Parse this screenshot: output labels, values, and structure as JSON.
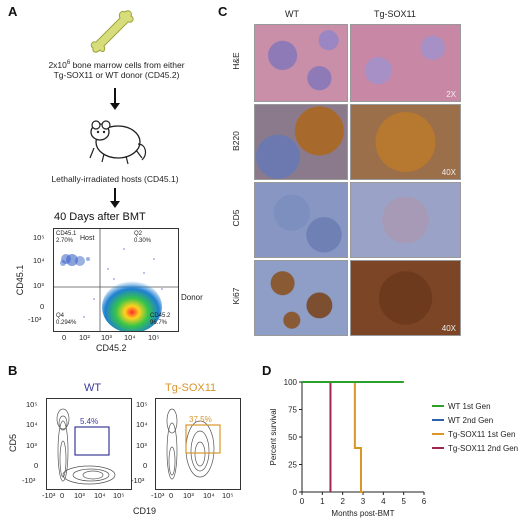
{
  "panels": {
    "A": "A",
    "B": "B",
    "C": "C",
    "D": "D"
  },
  "panel_a": {
    "donor_line1": "2x10",
    "donor_exp": "6",
    "donor_line1_rest": " bone marrow cells from either",
    "donor_line2": "Tg-SOX11 or WT donor (CD45.2)",
    "host_text": "Lethally-irradiated hosts (CD45.1)",
    "timepoint": "40 Days after BMT",
    "flow": {
      "ylabel": "CD45.1",
      "xlabel": "CD45.2",
      "q1_name": "CD45.1",
      "q1_value": "2.70%",
      "q2_name": "Q2",
      "q2_value": "0.30%",
      "q4_name": "Q4",
      "q4_value": "0.294%",
      "q3_name": "CD45.2",
      "q3_value": "96.7%",
      "host_label": "Host",
      "donor_label": "Donor",
      "yticks": [
        "10⁵",
        "10⁴",
        "10³",
        "0",
        "-10³"
      ],
      "xticks": [
        "0",
        "10²",
        "10³",
        "10⁴",
        "10⁵"
      ]
    }
  },
  "panel_b": {
    "wt_title": "WT",
    "tg_title": "Tg-SOX11",
    "wt_gate": "5.4%",
    "tg_gate": "37.5%",
    "ylabel": "CD5",
    "xlabel": "CD19",
    "yticks": [
      "10⁵",
      "10⁴",
      "10³",
      "0",
      "-10³"
    ],
    "xticks": [
      "-10³",
      "0",
      "10³",
      "10⁴",
      "10⁵"
    ],
    "colors": {
      "wt": "#3b3b9a",
      "tg": "#d8952a"
    }
  },
  "panel_c": {
    "col_wt": "WT",
    "col_tg": "Tg-SOX11",
    "rows": [
      "H&E",
      "B220",
      "CD5",
      "Ki67"
    ],
    "mag_2x": "2X",
    "mag_40x": "40X"
  },
  "panel_d": {
    "ylabel": "Percent survival",
    "xlabel": "Months post-BMT"
  },
  "chart_data": {
    "type": "line",
    "title": "",
    "xlabel": "Months post-BMT",
    "ylabel": "Percent survival",
    "xlim": [
      0,
      6
    ],
    "ylim": [
      0,
      100
    ],
    "xticks": [
      0,
      1,
      2,
      3,
      4,
      5,
      6
    ],
    "yticks": [
      0,
      25,
      50,
      75,
      100
    ],
    "legend_position": "right",
    "series": [
      {
        "name": "WT 1st Gen",
        "color": "#2ca02c",
        "x": [
          0,
          5
        ],
        "y": [
          100,
          100
        ]
      },
      {
        "name": "WT 2nd Gen",
        "color": "#2f5fa8",
        "x": [
          0,
          5
        ],
        "y": [
          100,
          100
        ]
      },
      {
        "name": "Tg-SOX11 1st Gen",
        "color": "#d8952a",
        "x": [
          0,
          2.6,
          2.6,
          2.9,
          2.9,
          3.0,
          3.0
        ],
        "y": [
          100,
          100,
          40,
          40,
          0,
          0,
          0
        ]
      },
      {
        "name": "Tg-SOX11 2nd Gen",
        "color": "#a0264d",
        "x": [
          0,
          1.4,
          1.4
        ],
        "y": [
          100,
          100,
          0
        ]
      }
    ]
  }
}
